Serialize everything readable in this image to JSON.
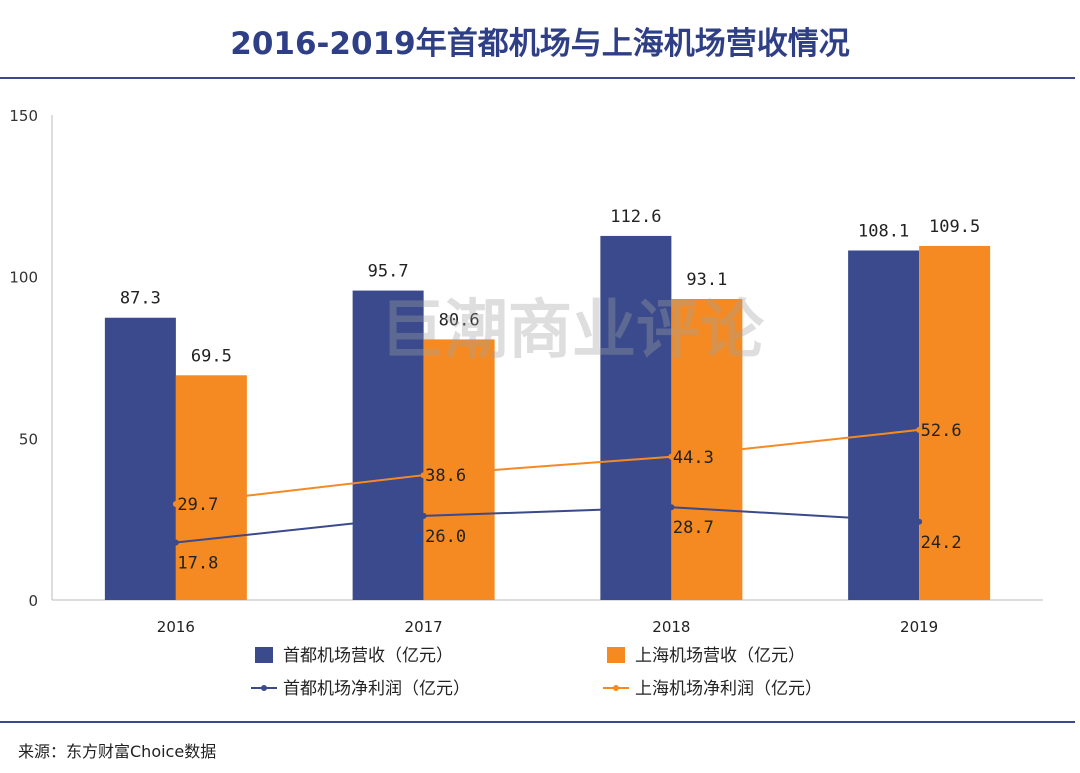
{
  "title": "2016-2019年首都机场与上海机场营收情况",
  "source": "来源：东方财富Choice数据",
  "watermark": "巨潮商业评论",
  "chart_data": {
    "type": "bar",
    "categories": [
      "2016",
      "2017",
      "2018",
      "2019"
    ],
    "ylim": [
      0,
      150
    ],
    "yticks": [
      0,
      50,
      100,
      150
    ],
    "grid": false,
    "legend_position": "bottom",
    "series": [
      {
        "name": "首都机场营收（亿元）",
        "kind": "bar",
        "color": "#3a4a8c",
        "values": [
          87.3,
          95.7,
          112.6,
          108.1
        ]
      },
      {
        "name": "上海机场营收（亿元）",
        "kind": "bar",
        "color": "#f58a22",
        "values": [
          69.5,
          80.6,
          93.1,
          109.5
        ]
      },
      {
        "name": "首都机场净利润（亿元）",
        "kind": "line",
        "color": "#3a4a8c",
        "values": [
          17.8,
          26.0,
          28.7,
          24.2
        ]
      },
      {
        "name": "上海机场净利润（亿元）",
        "kind": "line",
        "color": "#f58a22",
        "values": [
          29.7,
          38.6,
          44.3,
          52.6
        ]
      }
    ]
  }
}
